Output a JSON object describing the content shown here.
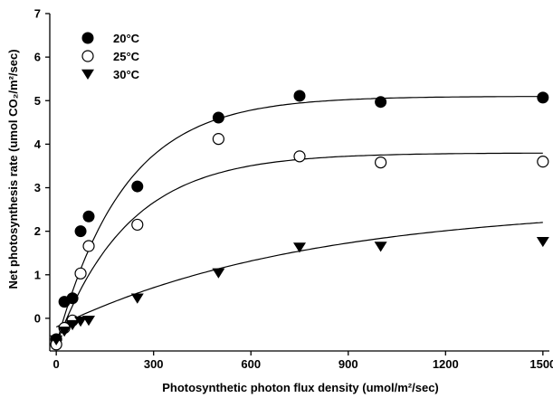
{
  "chart_data": {
    "type": "scatter",
    "title": "",
    "xlabel": "Photosynthetic photon flux density (umol/m²/sec)",
    "ylabel": "Net photosynthesis rate (umol CO₂/m²/sec)",
    "xlim": [
      -20,
      1520
    ],
    "ylim": [
      -0.75,
      7
    ],
    "xticks": [
      0,
      300,
      600,
      900,
      1200,
      1500
    ],
    "yticks": [
      0,
      1,
      2,
      3,
      4,
      5,
      6,
      7
    ],
    "grid": false,
    "legend_position": "top-left",
    "series": [
      {
        "name": "20°C",
        "marker": "filled-circle",
        "x": [
          0,
          25,
          50,
          75,
          100,
          250,
          500,
          750,
          1000,
          1500
        ],
        "y": [
          -0.48,
          0.38,
          0.46,
          2.0,
          2.34,
          3.03,
          4.61,
          5.11,
          4.97,
          5.07
        ],
        "fit": {
          "model": "Pmax*(1-exp(-k*x))+b",
          "Pmax": 5.7,
          "k": 0.0048,
          "b": -0.6
        }
      },
      {
        "name": "25°C",
        "marker": "open-circle",
        "x": [
          0,
          25,
          50,
          75,
          100,
          250,
          500,
          750,
          1000,
          1500
        ],
        "y": [
          -0.6,
          -0.22,
          -0.05,
          1.03,
          1.66,
          2.15,
          4.12,
          3.72,
          3.58,
          3.6
        ],
        "fit": {
          "model": "Pmax*(1-exp(-k*x))+b",
          "Pmax": 4.4,
          "k": 0.0045,
          "b": -0.6
        }
      },
      {
        "name": "30°C",
        "marker": "filled-triangle-down",
        "x": [
          0,
          25,
          50,
          75,
          100,
          250,
          500,
          750,
          1000,
          1500
        ],
        "y": [
          -0.5,
          -0.3,
          -0.15,
          -0.07,
          -0.05,
          0.46,
          1.04,
          1.63,
          1.65,
          1.76
        ],
        "fit": {
          "model": "Pmax*(1-exp(-k*x))+b",
          "Pmax": 2.8,
          "k": 0.0013,
          "b": -0.2
        }
      }
    ]
  },
  "legend": {
    "entries": [
      "20°C",
      "25°C",
      "30°C"
    ]
  }
}
